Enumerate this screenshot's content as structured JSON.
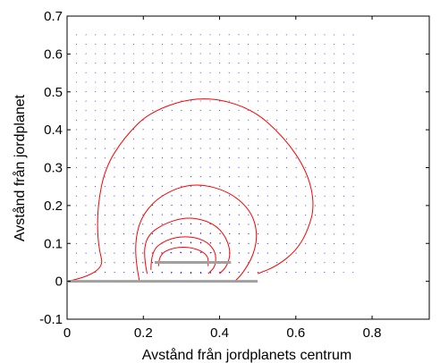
{
  "chart_data": {
    "type": "contour",
    "xlabel": "Avstånd från jordplanets centrum",
    "ylabel": "Avstånd från jordplanet",
    "xlim": [
      0,
      0.95
    ],
    "ylim": [
      -0.1,
      0.7
    ],
    "xticks": [
      "0",
      "0.2",
      "0.4",
      "0.6",
      "0.8"
    ],
    "xtick_values": [
      0,
      0.2,
      0.4,
      0.6,
      0.8
    ],
    "yticks": [
      "-0.1",
      "0",
      "0.1",
      "0.2",
      "0.3",
      "0.4",
      "0.5",
      "0.6",
      "0.7"
    ],
    "ytick_values": [
      -0.1,
      0,
      0.1,
      0.2,
      0.3,
      0.4,
      0.5,
      0.6,
      0.7
    ],
    "grid": false,
    "ground_plane": {
      "x": [
        0,
        0.5
      ],
      "y": 0,
      "color": "#a0a0a0"
    },
    "charged_plate": {
      "x": [
        0.23,
        0.43
      ],
      "y": 0.05
    },
    "vector_field": {
      "x_range": [
        0,
        0.75
      ],
      "y_range": [
        0,
        0.65
      ],
      "spacing": 0.025,
      "color": "#0000ff"
    },
    "contour_lines": [
      {
        "color": "#ff0000",
        "points": [
          [
            0.0,
            0.0
          ],
          [
            0.1,
            0.02
          ],
          [
            0.08,
            0.1
          ],
          [
            0.08,
            0.2
          ],
          [
            0.1,
            0.3
          ],
          [
            0.15,
            0.38
          ],
          [
            0.22,
            0.45
          ],
          [
            0.35,
            0.49
          ],
          [
            0.48,
            0.46
          ],
          [
            0.57,
            0.38
          ],
          [
            0.63,
            0.29
          ],
          [
            0.65,
            0.2
          ],
          [
            0.63,
            0.13
          ],
          [
            0.6,
            0.08
          ],
          [
            0.55,
            0.04
          ],
          [
            0.5,
            0.02
          ]
        ]
      },
      {
        "color": "#ff0000",
        "points": [
          [
            0.19,
            0.0
          ],
          [
            0.18,
            0.05
          ],
          [
            0.18,
            0.12
          ],
          [
            0.2,
            0.18
          ],
          [
            0.25,
            0.23
          ],
          [
            0.33,
            0.26
          ],
          [
            0.42,
            0.24
          ],
          [
            0.48,
            0.19
          ],
          [
            0.5,
            0.13
          ],
          [
            0.49,
            0.07
          ],
          [
            0.46,
            0.02
          ],
          [
            0.44,
            0.0
          ]
        ]
      },
      {
        "color": "#ff0000",
        "points": [
          [
            0.21,
            0.02
          ],
          [
            0.2,
            0.07
          ],
          [
            0.21,
            0.12
          ],
          [
            0.25,
            0.15
          ],
          [
            0.31,
            0.17
          ],
          [
            0.37,
            0.16
          ],
          [
            0.41,
            0.13
          ],
          [
            0.43,
            0.08
          ],
          [
            0.42,
            0.04
          ],
          [
            0.4,
            0.02
          ]
        ]
      },
      {
        "color": "#ff0000",
        "points": [
          [
            0.22,
            0.03
          ],
          [
            0.22,
            0.08
          ],
          [
            0.26,
            0.11
          ],
          [
            0.31,
            0.12
          ],
          [
            0.36,
            0.11
          ],
          [
            0.39,
            0.08
          ],
          [
            0.39,
            0.04
          ],
          [
            0.37,
            0.02
          ]
        ]
      },
      {
        "color": "#ff0000",
        "points": [
          [
            0.24,
            0.04
          ],
          [
            0.24,
            0.07
          ],
          [
            0.28,
            0.09
          ],
          [
            0.33,
            0.09
          ],
          [
            0.37,
            0.07
          ],
          [
            0.37,
            0.04
          ]
        ]
      }
    ]
  }
}
